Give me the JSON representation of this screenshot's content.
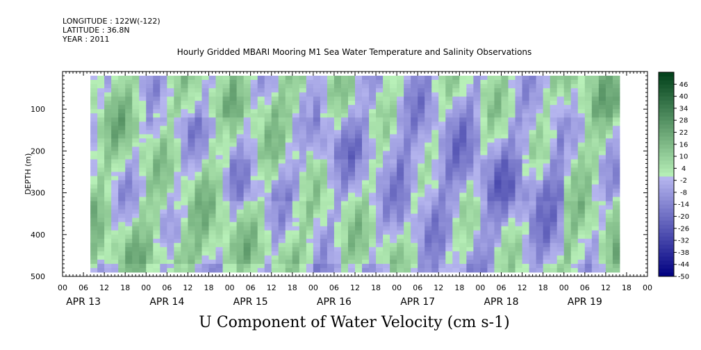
{
  "header": {
    "longitude": "LONGITUDE : 122W(-122)",
    "latitude": "LATITUDE : 36.8N",
    "year": "YEAR : 2011"
  },
  "chart_data": {
    "type": "heatmap",
    "title": "Hourly Gridded MBARI Mooring M1 Sea Water Temperature and Salinity Observations",
    "xlabel": "U Component of Water Velocity (cm s-1)",
    "ylabel": "DEPTH (m)",
    "ylim": [
      500,
      10
    ],
    "y_reversed": true,
    "y_ticks": [
      100,
      200,
      300,
      400,
      500
    ],
    "x_hours_per_day": 24,
    "x_tick_hours": [
      "00",
      "06",
      "12",
      "18"
    ],
    "x_days": [
      "APR 13",
      "APR 14",
      "APR 15",
      "APR 16",
      "APR 17",
      "APR 18",
      "APR 19"
    ],
    "data_extent_hours": [
      8,
      160
    ],
    "data_depth_extent": [
      20,
      490
    ],
    "colorbar": {
      "levels": [
        -50,
        -44,
        -38,
        -32,
        -26,
        -20,
        -14,
        -8,
        -2,
        4,
        10,
        16,
        22,
        28,
        34,
        40,
        46
      ],
      "range": [
        -50,
        52
      ],
      "step": 2,
      "low_color": "#000080",
      "mid_low_color": "#b8b8f0",
      "mid_high_color": "#b8f0b8",
      "high_color": "#00401a"
    },
    "series": [
      {
        "depth_profile_m": [
          25,
          75,
          125,
          175,
          225,
          275,
          325,
          375,
          425,
          475
        ],
        "day_mean_u": [
          [
            4,
            6,
            8,
            6,
            4,
            2,
            4,
            6,
            8,
            4
          ],
          [
            2,
            4,
            -2,
            0,
            2,
            4,
            6,
            8,
            10,
            2
          ],
          [
            6,
            8,
            4,
            2,
            -2,
            -4,
            2,
            4,
            6,
            0
          ],
          [
            0,
            -2,
            -6,
            -8,
            -4,
            -2,
            0,
            2,
            4,
            -2
          ],
          [
            -2,
            -4,
            -6,
            -8,
            -10,
            -8,
            -6,
            -4,
            -2,
            -4
          ],
          [
            2,
            0,
            -4,
            -6,
            -10,
            -12,
            -8,
            -6,
            -4,
            -2
          ],
          [
            8,
            10,
            6,
            4,
            2,
            0,
            4,
            6,
            8,
            4
          ]
        ]
      }
    ]
  }
}
